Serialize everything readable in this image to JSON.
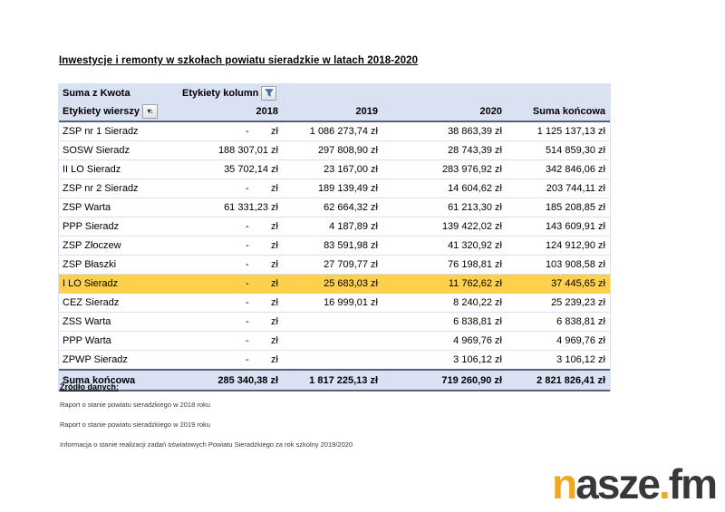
{
  "title": "Inwestycje i remonty w szkołach powiatu sieradzkie w latach 2018-2020",
  "pivot": {
    "value_field_label": "Suma z Kwota",
    "column_area_label": "Etykiety kolumn",
    "row_area_label": "Etykiety wierszy",
    "column_headers": [
      "2018",
      "2019",
      "2020",
      "Suma końcowa"
    ],
    "rows": [
      {
        "label": "ZSP nr 1 Sieradz",
        "values": [
          "-        zł",
          "1 086 273,74 zł",
          "38 863,39 zł",
          "1 125 137,13 zł"
        ],
        "highlight": false
      },
      {
        "label": "SOSW Sieradz",
        "values": [
          "188 307,01 zł",
          "297 808,90 zł",
          "28 743,39 zł",
          "514 859,30 zł"
        ],
        "highlight": false
      },
      {
        "label": "II LO Sieradz",
        "values": [
          "35 702,14 zł",
          "23 167,00 zł",
          "283 976,92 zł",
          "342 846,06 zł"
        ],
        "highlight": false
      },
      {
        "label": "ZSP nr 2 Sieradz",
        "values": [
          "-        zł",
          "189 139,49 zł",
          "14 604,62 zł",
          "203 744,11 zł"
        ],
        "highlight": false
      },
      {
        "label": "ZSP Warta",
        "values": [
          "61 331,23 zł",
          "62 664,32 zł",
          "61 213,30 zł",
          "185 208,85 zł"
        ],
        "highlight": false
      },
      {
        "label": "PPP Sieradz",
        "values": [
          "-        zł",
          "4 187,89 zł",
          "139 422,02 zł",
          "143 609,91 zł"
        ],
        "highlight": false
      },
      {
        "label": "ZSP Złoczew",
        "values": [
          "-        zł",
          "83 591,98 zł",
          "41 320,92 zł",
          "124 912,90 zł"
        ],
        "highlight": false
      },
      {
        "label": "ZSP Błaszki",
        "values": [
          "-        zł",
          "27 709,77 zł",
          "76 198,81 zł",
          "103 908,58 zł"
        ],
        "highlight": false
      },
      {
        "label": "I LO Sieradz",
        "values": [
          "-        zł",
          "25 683,03 zł",
          "11 762,62 zł",
          "37 445,65 zł"
        ],
        "highlight": true
      },
      {
        "label": "CEZ Sieradz",
        "values": [
          "-        zł",
          "16 999,01 zł",
          "8 240,22 zł",
          "25 239,23 zł"
        ],
        "highlight": false
      },
      {
        "label": "ZSS Warta",
        "values": [
          "-        zł",
          "",
          "6 838,81 zł",
          "6 838,81 zł"
        ],
        "highlight": false
      },
      {
        "label": "PPP Warta",
        "values": [
          "-        zł",
          "",
          "4 969,76 zł",
          "4 969,76 zł"
        ],
        "highlight": false
      },
      {
        "label": "ZPWP Sieradz",
        "values": [
          "-        zł",
          "",
          "3 106,12 zł",
          "3 106,12 zł"
        ],
        "highlight": false
      }
    ],
    "grand_total": {
      "label": "Suma końcowa",
      "values": [
        "285 340,38 zł",
        "1 817 225,13 zł",
        "719 260,90 zł",
        "2 821 826,41 zł"
      ]
    }
  },
  "sources": {
    "heading": "Źródło danych:",
    "items": [
      "Raport o stanie powiatu sieradzkiego w 2018 roku",
      "Raport o stanie powiatu sieradzkiego w 2019 roku",
      "Informacja o stanie realizacji zadań oświatowych Powiatu Sieradzkiego za rok szkolny 2019/2020"
    ]
  },
  "logo": {
    "prefix": "n",
    "middle": "asze",
    "dot": ".",
    "suffix": "fm"
  },
  "colors": {
    "header_bg": "#D9E1F2",
    "row_separator": "#D9E1F2",
    "highlight_row_bg": "#FFD04C",
    "table_border_dark": "#55617A",
    "logo_accent": "#EFA91D",
    "logo_dark": "#38383A"
  }
}
